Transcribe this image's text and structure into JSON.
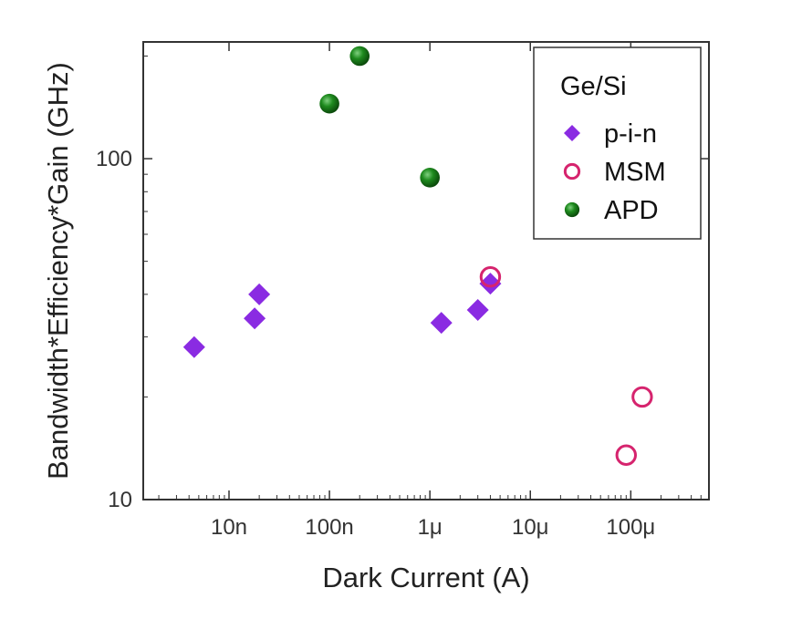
{
  "chart_data": {
    "type": "scatter",
    "title": "",
    "xlabel": "Dark Current (A)",
    "ylabel": "Bandwidth*Efficiency*Gain (GHz)",
    "x_scale": "log",
    "y_scale": "log",
    "xlim": [
      1.4e-09,
      0.0006
    ],
    "ylim": [
      10,
      220
    ],
    "x_ticks": [
      {
        "value": 1e-08,
        "label": "10n"
      },
      {
        "value": 1e-07,
        "label": "100n"
      },
      {
        "value": 1e-06,
        "label": "1μ"
      },
      {
        "value": 1e-05,
        "label": "10μ"
      },
      {
        "value": 0.0001,
        "label": "100μ"
      }
    ],
    "y_ticks": [
      {
        "value": 10,
        "label": "10"
      },
      {
        "value": 100,
        "label": "100"
      }
    ],
    "grid": false,
    "legend": {
      "title": "Ge/Si",
      "position": "top-right"
    },
    "series": [
      {
        "name": "p-i-n",
        "marker": "diamond",
        "color": "#8a2be2",
        "points": [
          {
            "x": 4.5e-09,
            "y": 28
          },
          {
            "x": 1.8e-08,
            "y": 34
          },
          {
            "x": 2e-08,
            "y": 40
          },
          {
            "x": 1.3e-06,
            "y": 33
          },
          {
            "x": 3e-06,
            "y": 36
          },
          {
            "x": 4e-06,
            "y": 43
          }
        ]
      },
      {
        "name": "MSM",
        "marker": "open-circle",
        "color": "#d6246e",
        "points": [
          {
            "x": 4e-06,
            "y": 45
          },
          {
            "x": 9e-05,
            "y": 13.5
          },
          {
            "x": 0.00013,
            "y": 20
          }
        ]
      },
      {
        "name": "APD",
        "marker": "filled-circle",
        "color": "#1b7a1b",
        "points": [
          {
            "x": 1e-07,
            "y": 145
          },
          {
            "x": 2e-07,
            "y": 200
          },
          {
            "x": 1e-06,
            "y": 88
          }
        ]
      }
    ]
  }
}
